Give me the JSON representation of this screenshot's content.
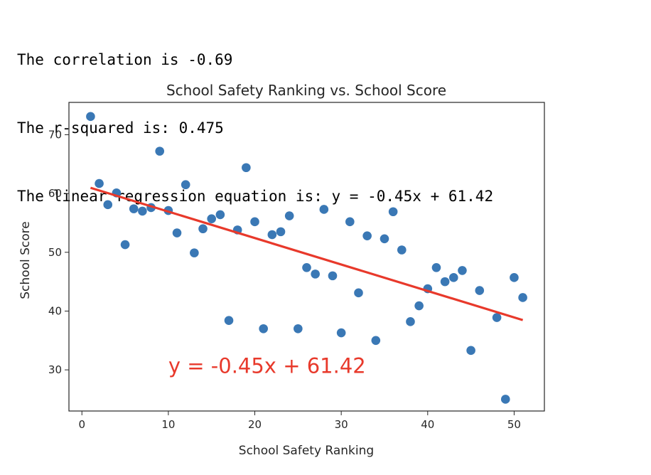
{
  "output_lines": [
    "The correlation is -0.69",
    "The r-squared is: 0.475",
    "The linear regression equation is: y = -0.45x + 61.42"
  ],
  "colors": {
    "points": "#3a78b5",
    "regression": "#e8392b",
    "annotation": "#e8392b",
    "axes": "#262626"
  },
  "chart_data": {
    "type": "scatter",
    "title": "School Safety Ranking vs. School Score",
    "xlabel": "School Safety Ranking",
    "ylabel": "School Score",
    "xlim": [
      -1.5,
      53.5
    ],
    "ylim": [
      23,
      75.5
    ],
    "xticks": [
      0,
      10,
      20,
      30,
      40,
      50
    ],
    "yticks": [
      30,
      40,
      50,
      60,
      70
    ],
    "grid": false,
    "legend": "none",
    "points": [
      {
        "x": 1,
        "y": 73.1
      },
      {
        "x": 2,
        "y": 61.7
      },
      {
        "x": 3,
        "y": 58.1
      },
      {
        "x": 4,
        "y": 60.1
      },
      {
        "x": 5,
        "y": 51.3
      },
      {
        "x": 6,
        "y": 57.4
      },
      {
        "x": 7,
        "y": 57.0
      },
      {
        "x": 8,
        "y": 57.6
      },
      {
        "x": 9,
        "y": 67.2
      },
      {
        "x": 10,
        "y": 57.1
      },
      {
        "x": 11,
        "y": 53.3
      },
      {
        "x": 12,
        "y": 61.5
      },
      {
        "x": 13,
        "y": 49.9
      },
      {
        "x": 14,
        "y": 54.0
      },
      {
        "x": 15,
        "y": 55.7
      },
      {
        "x": 16,
        "y": 56.4
      },
      {
        "x": 17,
        "y": 38.4
      },
      {
        "x": 18,
        "y": 53.8
      },
      {
        "x": 19,
        "y": 64.4
      },
      {
        "x": 20,
        "y": 55.2
      },
      {
        "x": 21,
        "y": 37.0
      },
      {
        "x": 22,
        "y": 53.0
      },
      {
        "x": 23,
        "y": 53.5
      },
      {
        "x": 24,
        "y": 56.2
      },
      {
        "x": 25,
        "y": 37.0
      },
      {
        "x": 26,
        "y": 47.4
      },
      {
        "x": 27,
        "y": 46.3
      },
      {
        "x": 28,
        "y": 57.3
      },
      {
        "x": 29,
        "y": 46.0
      },
      {
        "x": 30,
        "y": 36.3
      },
      {
        "x": 31,
        "y": 55.2
      },
      {
        "x": 32,
        "y": 43.1
      },
      {
        "x": 33,
        "y": 52.8
      },
      {
        "x": 34,
        "y": 35.0
      },
      {
        "x": 35,
        "y": 52.3
      },
      {
        "x": 36,
        "y": 56.9
      },
      {
        "x": 37,
        "y": 50.4
      },
      {
        "x": 38,
        "y": 38.2
      },
      {
        "x": 39,
        "y": 40.9
      },
      {
        "x": 40,
        "y": 43.8
      },
      {
        "x": 41,
        "y": 47.4
      },
      {
        "x": 42,
        "y": 45.0
      },
      {
        "x": 43,
        "y": 45.7
      },
      {
        "x": 44,
        "y": 46.9
      },
      {
        "x": 45,
        "y": 33.3
      },
      {
        "x": 46,
        "y": 43.5
      },
      {
        "x": 48,
        "y": 38.9
      },
      {
        "x": 49,
        "y": 25.0
      },
      {
        "x": 50,
        "y": 45.7
      },
      {
        "x": 51,
        "y": 42.3
      }
    ],
    "regression": {
      "slope": -0.45,
      "intercept": 61.42,
      "x_range": [
        1,
        51
      ],
      "annotation": "y = -0.45x + 61.42",
      "annotation_at": {
        "x": 10,
        "y": 29.5
      }
    }
  }
}
